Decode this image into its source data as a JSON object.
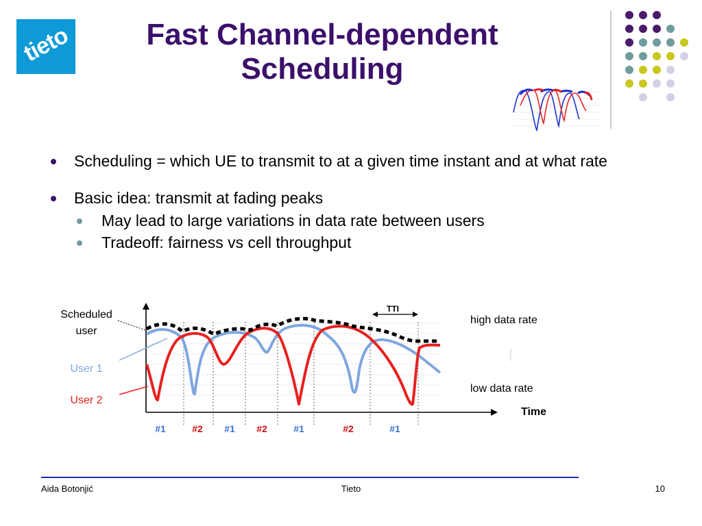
{
  "logo": {
    "text": "tieto",
    "color": "#0e9ad7"
  },
  "title": {
    "line1": "Fast Channel-dependent",
    "line2": "Scheduling",
    "color": "#3b0f6b"
  },
  "bullets": [
    {
      "text": "Scheduling = which UE to transmit to at a given time instant and at what rate",
      "level": 1
    },
    {
      "text": "Basic idea: transmit at fading peaks",
      "level": 1
    },
    {
      "text": "May lead to large variations in data rate between users",
      "level": 2
    },
    {
      "text": "Tradeoff: fairness vs cell throughput",
      "level": 2
    }
  ],
  "diagram": {
    "scheduled_user_line1": "Scheduled",
    "scheduled_user_line2": "user",
    "user1": "User 1",
    "user2": "User 2",
    "tti": "TTI",
    "high": "high data rate",
    "low": "low data rate",
    "time": "Time",
    "slots": [
      "#1",
      "#2",
      "#1",
      "#2",
      "#1",
      "#2",
      "#1"
    ],
    "colors": {
      "user1": "#7ea6e0",
      "user2": "#e8201f",
      "slot1": "#3b6fd4",
      "slot2": "#cc1010"
    }
  },
  "footer": {
    "author": "Aida Botonjić",
    "company": "Tieto",
    "page": "10"
  },
  "decor_colors": {
    "purple": "#4b1b6b",
    "teal": "#6f9c9e",
    "yellow": "#c8c81e",
    "lavender": "#d3d0e6"
  }
}
